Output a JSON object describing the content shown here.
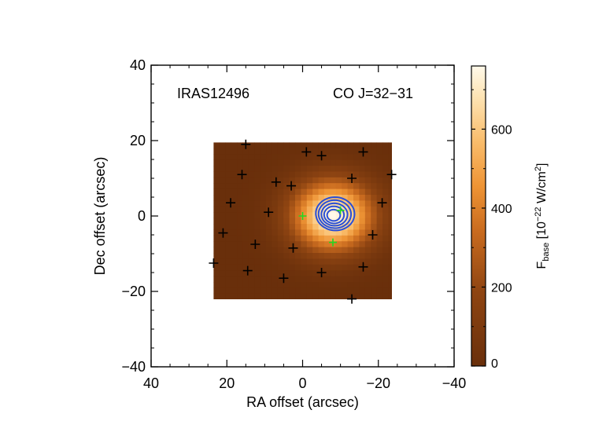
{
  "chart_data": {
    "type": "heatmap",
    "title_left": "IRAS12496",
    "title_right": "CO J=32−31",
    "xlabel": "RA offset (arcsec)",
    "ylabel": "Dec offset (arcsec)",
    "xlim": [
      40,
      -40
    ],
    "ylim": [
      -40,
      40
    ],
    "x_ticks": [
      40,
      20,
      0,
      -20,
      -40
    ],
    "x_tick_labels": [
      "40",
      "20",
      "0",
      "−20",
      "−40"
    ],
    "y_ticks": [
      -40,
      -20,
      0,
      20,
      40
    ],
    "y_tick_labels": [
      "−40",
      "−20",
      "0",
      "20",
      "40"
    ],
    "map_extent": {
      "ra": [
        23.5,
        -23.5
      ],
      "dec": [
        -22,
        19.5
      ]
    },
    "source_peak": {
      "ra": -8,
      "dec": 0,
      "value": 760
    },
    "colorbar": {
      "label_main": "F",
      "label_sub": "base",
      "label_rest": " [10",
      "label_exp": "−22",
      "label_unit": " W/cm",
      "label_unit_exp": "2",
      "label_close": "]",
      "range": [
        0,
        760
      ],
      "ticks": [
        0,
        200,
        400,
        600
      ],
      "tick_labels": [
        "0",
        "200",
        "400",
        "600"
      ]
    },
    "contour_levels": [
      420,
      500,
      580,
      650,
      710
    ],
    "detector_positions": [
      [
        15,
        19
      ],
      [
        -1,
        17
      ],
      [
        -5,
        16
      ],
      [
        -16,
        17
      ],
      [
        16,
        11
      ],
      [
        7,
        9
      ],
      [
        -13,
        10
      ],
      [
        -23.5,
        11
      ],
      [
        19,
        3.5
      ],
      [
        3,
        8
      ],
      [
        -21,
        3.5
      ],
      [
        9,
        1
      ],
      [
        21,
        -4.5
      ],
      [
        -18.5,
        -5
      ],
      [
        12.5,
        -7.5
      ],
      [
        2.5,
        -8.5
      ],
      [
        -16,
        -13.5
      ],
      [
        23.5,
        -12.5
      ],
      [
        14.5,
        -14.5
      ],
      [
        5,
        -16.5
      ],
      [
        -5,
        -15
      ],
      [
        -13,
        -22
      ]
    ],
    "reference_positions": [
      [
        0,
        0
      ],
      [
        -10,
        1.5
      ],
      [
        -8,
        -7
      ]
    ]
  }
}
